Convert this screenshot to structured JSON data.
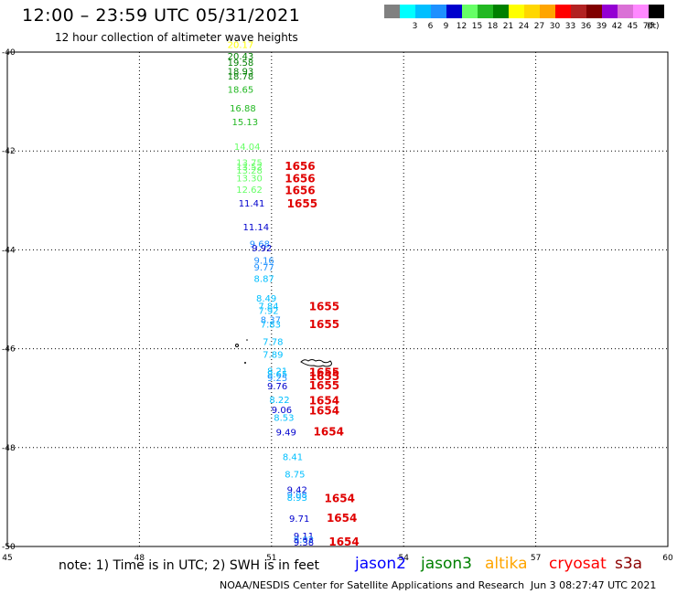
{
  "header": {
    "title": "12:00 – 23:59 UTC 05/31/2021",
    "subtitle": "12 hour collection of altimeter wave heights"
  },
  "color_scale": {
    "unit": "(ft)",
    "entries": [
      {
        "label": "",
        "color": "#808080"
      },
      {
        "label": "3",
        "color": "#00ffff"
      },
      {
        "label": "6",
        "color": "#00bfff"
      },
      {
        "label": "9",
        "color": "#1e90ff"
      },
      {
        "label": "12",
        "color": "#0000cd"
      },
      {
        "label": "15",
        "color": "#66ff66"
      },
      {
        "label": "18",
        "color": "#22b822"
      },
      {
        "label": "21",
        "color": "#008000"
      },
      {
        "label": "24",
        "color": "#ffff00"
      },
      {
        "label": "27",
        "color": "#ffd700"
      },
      {
        "label": "30",
        "color": "#ffa500"
      },
      {
        "label": "33",
        "color": "#ff0000"
      },
      {
        "label": "36",
        "color": "#b22222"
      },
      {
        "label": "39",
        "color": "#800000"
      },
      {
        "label": "42",
        "color": "#9400d3"
      },
      {
        "label": "45",
        "color": "#da70d6"
      },
      {
        "label": "70",
        "color": "#ff88ff"
      },
      {
        "label": "",
        "color": "#000000"
      }
    ]
  },
  "map": {
    "lon_ticks": [
      "45",
      "48",
      "51",
      "54",
      "57",
      "60"
    ],
    "lat_ticks": [
      "-40",
      "-42",
      "-44",
      "-46",
      "-48",
      "-50"
    ],
    "lon_range": [
      45,
      60
    ],
    "lat_range": [
      -40,
      -50
    ]
  },
  "swh_points": [
    {
      "value": "20.17",
      "lon": 50.0,
      "lat": -39.92,
      "color": "#ffff00"
    },
    {
      "value": "20.43",
      "lon": 50.0,
      "lat": -40.15,
      "color": "#008000"
    },
    {
      "value": "19.58",
      "lon": 50.0,
      "lat": -40.28,
      "color": "#008000"
    },
    {
      "value": "18.93",
      "lon": 50.0,
      "lat": -40.45,
      "color": "#008000"
    },
    {
      "value": "18.78",
      "lon": 50.0,
      "lat": -40.55,
      "color": "#008000"
    },
    {
      "value": "18.65",
      "lon": 50.0,
      "lat": -40.82,
      "color": "#22b822"
    },
    {
      "value": "16.88",
      "lon": 50.05,
      "lat": -41.2,
      "color": "#22b822"
    },
    {
      "value": "15.13",
      "lon": 50.1,
      "lat": -41.48,
      "color": "#22b822"
    },
    {
      "value": "14.04",
      "lon": 50.15,
      "lat": -41.98,
      "color": "#66ff66"
    },
    {
      "value": "13.75",
      "lon": 50.2,
      "lat": -42.3,
      "color": "#66ff66"
    },
    {
      "value": "13.52",
      "lon": 50.2,
      "lat": -42.38,
      "color": "#66ff66"
    },
    {
      "value": "13.28",
      "lon": 50.2,
      "lat": -42.46,
      "color": "#66ff66"
    },
    {
      "value": "13.30",
      "lon": 50.2,
      "lat": -42.62,
      "color": "#66ff66"
    },
    {
      "value": "12.62",
      "lon": 50.2,
      "lat": -42.85,
      "color": "#66ff66"
    },
    {
      "value": "11.41",
      "lon": 50.25,
      "lat": -43.12,
      "color": "#0000cd"
    },
    {
      "value": "11.14",
      "lon": 50.35,
      "lat": -43.6,
      "color": "#0000cd"
    },
    {
      "value": "9.68",
      "lon": 50.5,
      "lat": -43.95,
      "color": "#1e90ff"
    },
    {
      "value": "9.92",
      "lon": 50.55,
      "lat": -44.03,
      "color": "#0000cd"
    },
    {
      "value": "9.16",
      "lon": 50.6,
      "lat": -44.28,
      "color": "#1e90ff"
    },
    {
      "value": "9.77",
      "lon": 50.6,
      "lat": -44.42,
      "color": "#1e90ff"
    },
    {
      "value": "8.87",
      "lon": 50.6,
      "lat": -44.65,
      "color": "#00bfff"
    },
    {
      "value": "8.49",
      "lon": 50.65,
      "lat": -45.05,
      "color": "#00bfff"
    },
    {
      "value": "7.84",
      "lon": 50.7,
      "lat": -45.2,
      "color": "#00bfff"
    },
    {
      "value": "7.92",
      "lon": 50.7,
      "lat": -45.3,
      "color": "#00bfff"
    },
    {
      "value": "8.37",
      "lon": 50.75,
      "lat": -45.48,
      "color": "#1e90ff"
    },
    {
      "value": "7.83",
      "lon": 50.75,
      "lat": -45.57,
      "color": "#00bfff"
    },
    {
      "value": "7.78",
      "lon": 50.8,
      "lat": -45.92,
      "color": "#00bfff"
    },
    {
      "value": "7.89",
      "lon": 50.8,
      "lat": -46.18,
      "color": "#00bfff"
    },
    {
      "value": "8.21",
      "lon": 50.9,
      "lat": -46.52,
      "color": "#00bfff"
    },
    {
      "value": "8.65",
      "lon": 50.9,
      "lat": -46.58,
      "color": "#00bfff"
    },
    {
      "value": "9.25",
      "lon": 50.9,
      "lat": -46.65,
      "color": "#1e90ff"
    },
    {
      "value": "9.76",
      "lon": 50.9,
      "lat": -46.82,
      "color": "#0000cd"
    },
    {
      "value": "8.22",
      "lon": 50.95,
      "lat": -47.1,
      "color": "#00bfff"
    },
    {
      "value": "9.06",
      "lon": 51.0,
      "lat": -47.3,
      "color": "#0000cd"
    },
    {
      "value": "8.53",
      "lon": 51.05,
      "lat": -47.46,
      "color": "#00bfff"
    },
    {
      "value": "9.49",
      "lon": 51.1,
      "lat": -47.75,
      "color": "#0000cd"
    },
    {
      "value": "8.41",
      "lon": 51.25,
      "lat": -48.25,
      "color": "#00bfff"
    },
    {
      "value": "8.75",
      "lon": 51.3,
      "lat": -48.6,
      "color": "#00bfff"
    },
    {
      "value": "9.42",
      "lon": 51.35,
      "lat": -48.92,
      "color": "#0000cd"
    },
    {
      "value": "9.08",
      "lon": 51.35,
      "lat": -49.02,
      "color": "#1e90ff"
    },
    {
      "value": "8.93",
      "lon": 51.35,
      "lat": -49.08,
      "color": "#00bfff"
    },
    {
      "value": "9.71",
      "lon": 51.4,
      "lat": -49.5,
      "color": "#0000cd"
    },
    {
      "value": "9.11",
      "lon": 51.5,
      "lat": -49.85,
      "color": "#0000cd"
    },
    {
      "value": "9.02",
      "lon": 51.5,
      "lat": -49.93,
      "color": "#1e90ff"
    },
    {
      "value": "9.38",
      "lon": 51.5,
      "lat": -49.98,
      "color": "#0000cd"
    }
  ],
  "time_labels": [
    {
      "value": "1656",
      "lon": 51.3,
      "lat": -42.38
    },
    {
      "value": "1656",
      "lon": 51.3,
      "lat": -42.63
    },
    {
      "value": "1656",
      "lon": 51.3,
      "lat": -42.87
    },
    {
      "value": "1655",
      "lon": 51.35,
      "lat": -43.14
    },
    {
      "value": "1655",
      "lon": 51.85,
      "lat": -45.22
    },
    {
      "value": "1655",
      "lon": 51.85,
      "lat": -45.58
    },
    {
      "value": "1655",
      "lon": 51.85,
      "lat": -46.55
    },
    {
      "value": "1655",
      "lon": 51.85,
      "lat": -46.64
    },
    {
      "value": "1655",
      "lon": 51.85,
      "lat": -46.82
    },
    {
      "value": "1654",
      "lon": 51.85,
      "lat": -47.13
    },
    {
      "value": "1654",
      "lon": 51.85,
      "lat": -47.33
    },
    {
      "value": "1654",
      "lon": 51.95,
      "lat": -47.75
    },
    {
      "value": "1654",
      "lon": 52.2,
      "lat": -49.1
    },
    {
      "value": "1654",
      "lon": 52.25,
      "lat": -49.5
    },
    {
      "value": "1654",
      "lon": 52.3,
      "lat": -49.98
    }
  ],
  "footer": {
    "note": "note:  1) Time is in UTC;  2) SWH is in feet",
    "satellites": [
      {
        "name": "jason2",
        "color": "#0000ff"
      },
      {
        "name": "jason3",
        "color": "#008000"
      },
      {
        "name": "altika",
        "color": "#ffa500"
      },
      {
        "name": "cryosat",
        "color": "#ff0000"
      },
      {
        "name": "s3a",
        "color": "#8b0000"
      }
    ],
    "credit": "NOAA/NESDIS Center for Satellite Applications and Research",
    "date": "Jun  3 08:27:47 UTC 2021"
  }
}
